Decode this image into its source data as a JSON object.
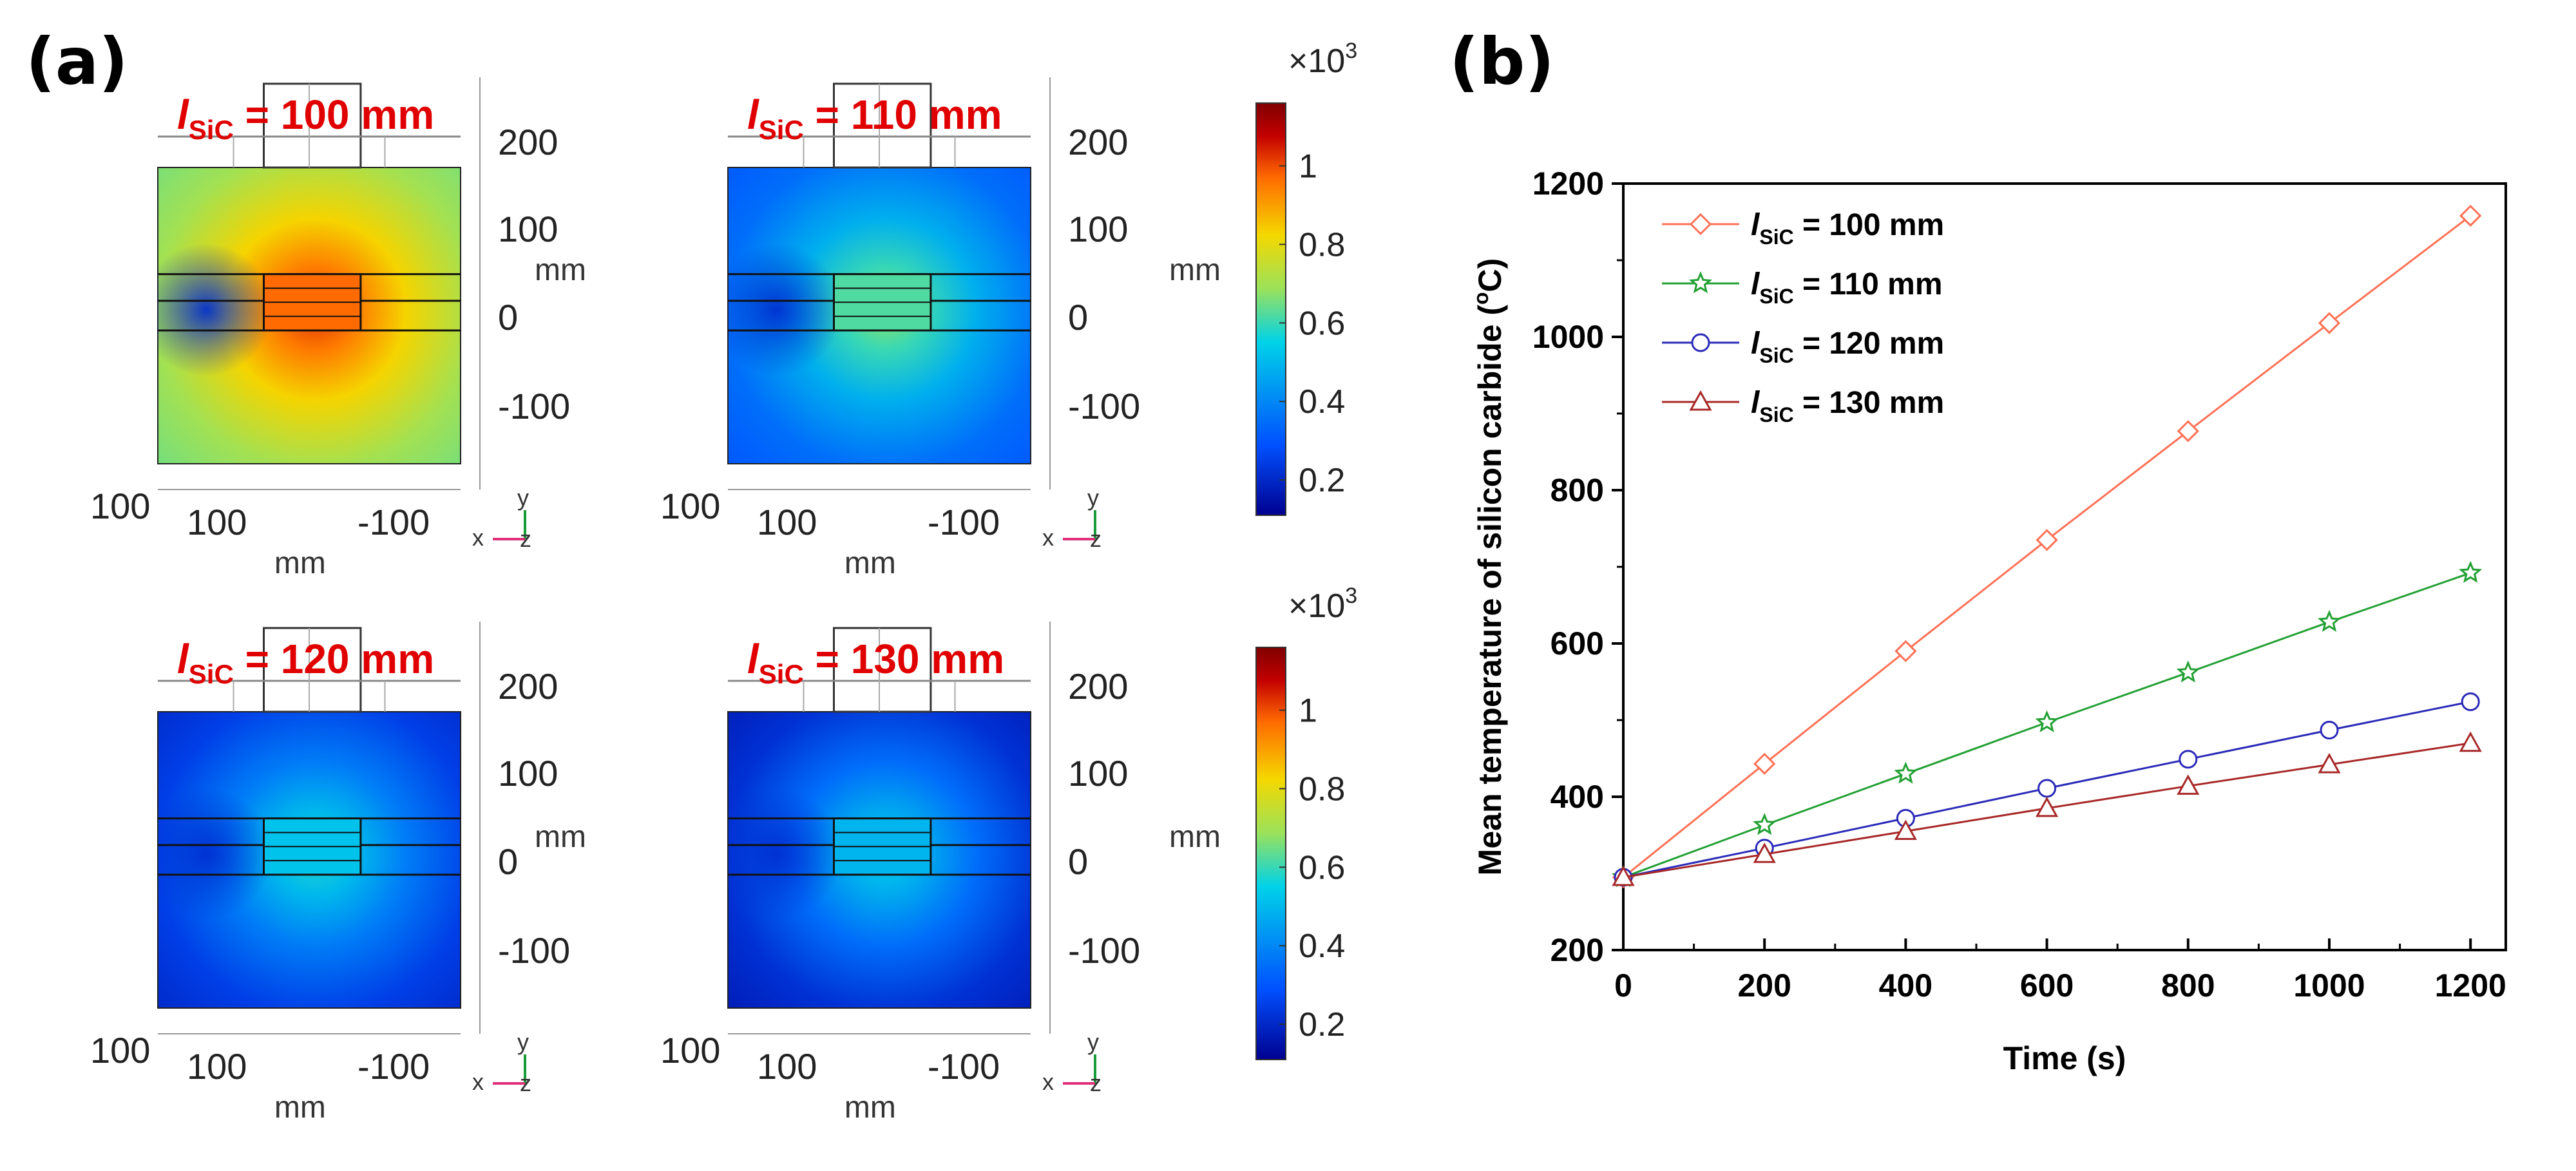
{
  "panels": {
    "a": "(a)",
    "b": "(b)"
  },
  "maps": [
    {
      "len_label": "l",
      "sub": "SiC",
      "value_text": "= 100 mm",
      "level": 0.95
    },
    {
      "len_label": "l",
      "sub": "SiC",
      "value_text": "= 110 mm",
      "level": 0.6
    },
    {
      "len_label": "l",
      "sub": "SiC",
      "value_text": "= 120 mm",
      "level": 0.5
    },
    {
      "len_label": "l",
      "sub": "SiC",
      "value_text": "= 130 mm",
      "level": 0.47
    }
  ],
  "map_axes": {
    "right_ticks": [
      "200",
      "100",
      "0",
      "-100"
    ],
    "right_unit": "mm",
    "bottom_ticks": [
      "100",
      "-100"
    ],
    "bottom_unit": "mm",
    "corner_tick": "100",
    "triad": {
      "x": "x",
      "y": "y",
      "z": "z"
    }
  },
  "colorbar": {
    "multiplier": "×10",
    "exponent": "3",
    "ticks": [
      "1",
      "0.8",
      "0.6",
      "0.4",
      "0.2"
    ],
    "tick_values": [
      1.0,
      0.8,
      0.6,
      0.4,
      0.2
    ],
    "range": [
      0.11,
      1.16
    ],
    "colors": {
      "c0": "#00008f",
      "c1": "#0050ff",
      "c2": "#00d2e8",
      "c3": "#9be25a",
      "c4": "#f5d800",
      "c5": "#ff6a00",
      "c6": "#c30000",
      "c7": "#800000"
    }
  },
  "chart_data": {
    "type": "line",
    "title": "",
    "xlabel": "Time (s)",
    "ylabel_main": "Mean temperature of silicon carbide (",
    "ylabel_sup": "o",
    "ylabel_end": "C)",
    "xlim": [
      0,
      1250
    ],
    "ylim": [
      200,
      1200
    ],
    "xticks": [
      0,
      200,
      400,
      600,
      800,
      1000,
      1200
    ],
    "yticks": [
      200,
      400,
      600,
      800,
      1000,
      1200
    ],
    "x": [
      0,
      200,
      400,
      600,
      800,
      1000,
      1200
    ],
    "legend_position": "top-left",
    "series": [
      {
        "name_prefix": "l",
        "name_sub": "SiC",
        "name_rest": " = 100 mm",
        "marker": "diamond",
        "color": "#ff7055",
        "values": [
          295,
          443,
          590,
          735,
          877,
          1018,
          1158
        ]
      },
      {
        "name_prefix": "l",
        "name_sub": "SiC",
        "name_rest": " = 110 mm",
        "marker": "star",
        "color": "#22a033",
        "values": [
          295,
          363,
          430,
          497,
          562,
          628,
          692
        ]
      },
      {
        "name_prefix": "l",
        "name_sub": "SiC",
        "name_rest": " = 120 mm",
        "marker": "circle",
        "color": "#2a2ab8",
        "values": [
          295,
          333,
          372,
          411,
          449,
          487,
          524
        ]
      },
      {
        "name_prefix": "l",
        "name_sub": "SiC",
        "name_rest": " = 130 mm",
        "marker": "triangle",
        "color": "#a82828",
        "values": [
          295,
          325,
          355,
          385,
          414,
          442,
          470
        ]
      }
    ]
  }
}
